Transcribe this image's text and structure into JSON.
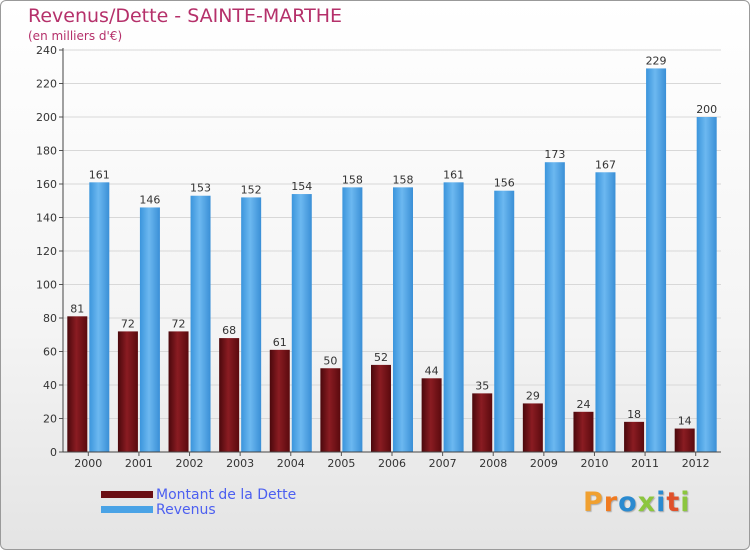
{
  "header": {
    "title": "Revenus/Dette - SAINTE-MARTHE",
    "subtitle": "(en milliers d'€)"
  },
  "colors": {
    "dette": "#6b0f14",
    "revenus": "#4aa3e6",
    "title": "#b5306a",
    "legend_text": "#4c5ff0"
  },
  "legend": {
    "dette_label": "Montant de la Dette",
    "revenus_label": "Revenus"
  },
  "logo": {
    "text": "Proxiti",
    "letter_colors": [
      "#f0a030",
      "#f07a20",
      "#2a8ad0",
      "#8cc63e",
      "#2a8ad0",
      "#e0502a",
      "#8cc63e"
    ]
  },
  "chart_data": {
    "type": "bar",
    "categories": [
      "2000",
      "2001",
      "2002",
      "2003",
      "2004",
      "2005",
      "2006",
      "2007",
      "2008",
      "2009",
      "2010",
      "2011",
      "2012"
    ],
    "series": [
      {
        "name": "Montant de la Dette",
        "values": [
          81,
          72,
          72,
          68,
          61,
          50,
          52,
          44,
          35,
          29,
          24,
          18,
          14
        ]
      },
      {
        "name": "Revenus",
        "values": [
          161,
          146,
          153,
          152,
          154,
          158,
          158,
          161,
          156,
          173,
          167,
          229,
          200
        ]
      }
    ],
    "yticks": [
      0,
      20,
      40,
      60,
      80,
      100,
      120,
      140,
      160,
      180,
      200,
      220,
      240
    ],
    "ylim": [
      0,
      240
    ],
    "grid": true,
    "legend_position": "bottom-left"
  }
}
